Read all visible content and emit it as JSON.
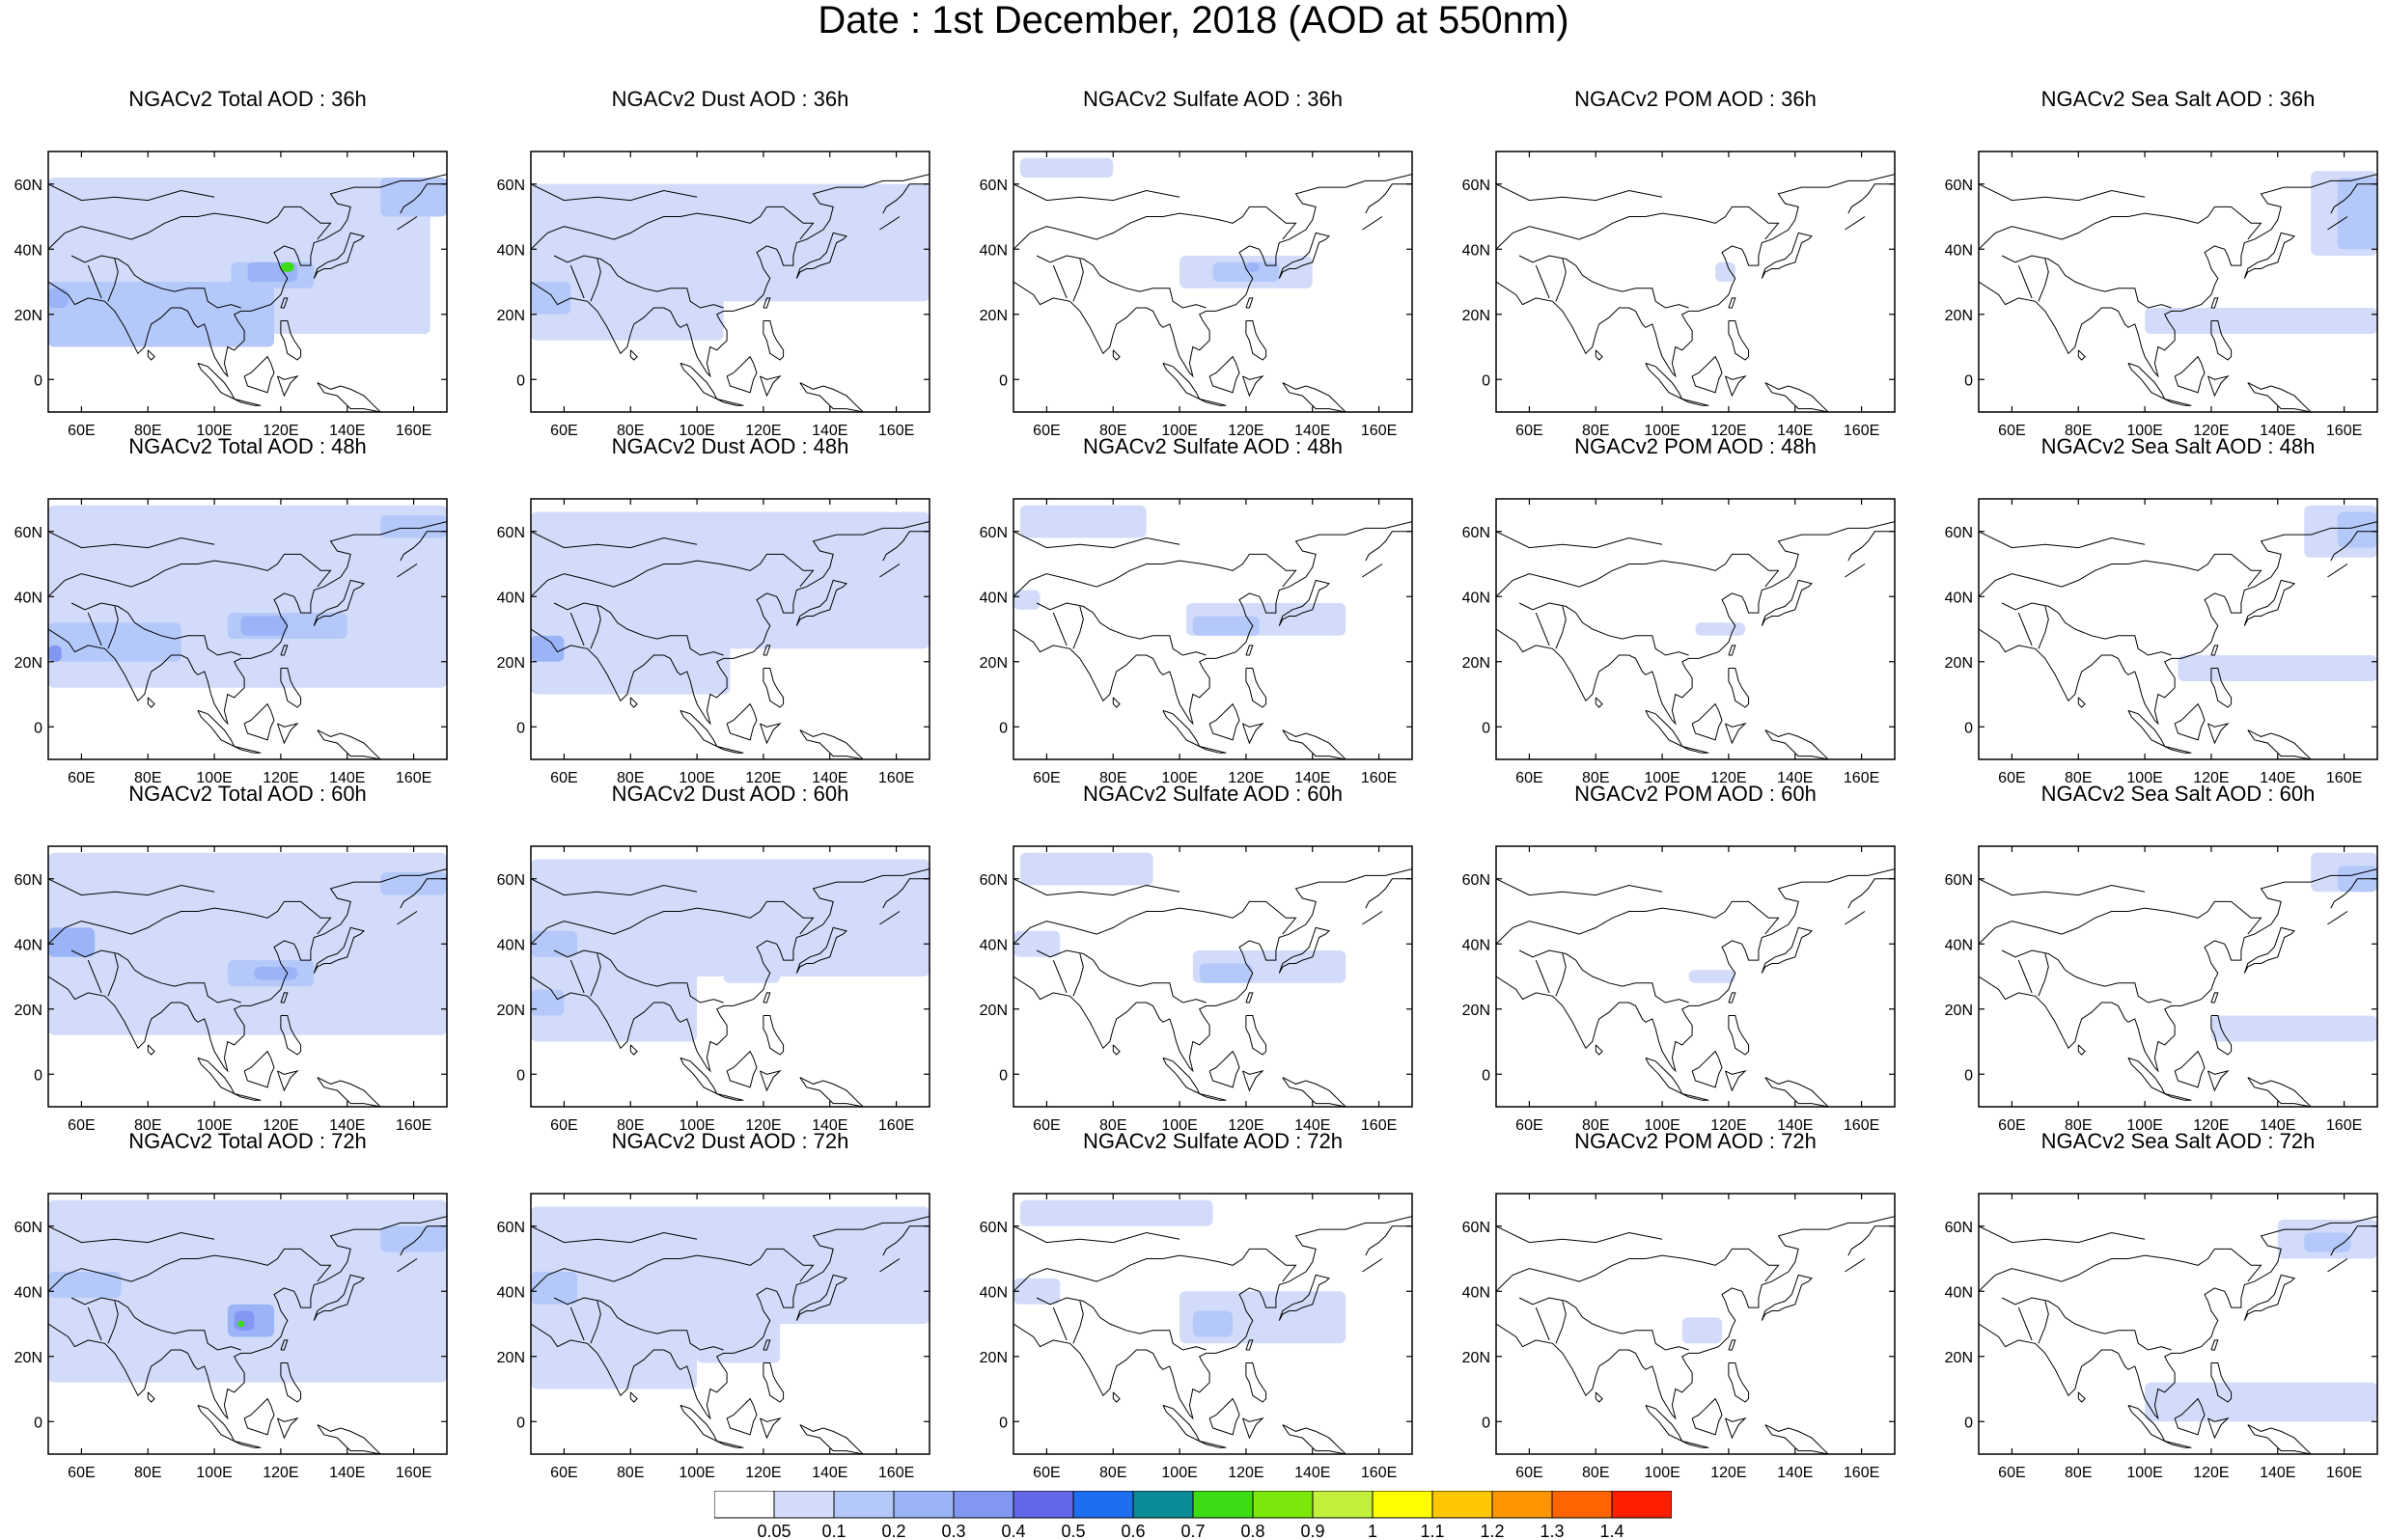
{
  "figure": {
    "title": "Date : 1st December, 2018 (AOD at 550nm)"
  },
  "panel_titles": [
    [
      "NGACv2 Total AOD : 36h",
      "NGACv2 Dust AOD : 36h",
      "NGACv2 Sulfate AOD : 36h",
      "NGACv2 POM AOD : 36h",
      "NGACv2 Sea Salt AOD : 36h"
    ],
    [
      "NGACv2 Total AOD : 48h",
      "NGACv2 Dust AOD : 48h",
      "NGACv2 Sulfate AOD : 48h",
      "NGACv2 POM AOD : 48h",
      "NGACv2 Sea Salt AOD : 48h"
    ],
    [
      "NGACv2 Total AOD : 60h",
      "NGACv2 Dust AOD : 60h",
      "NGACv2 Sulfate AOD : 60h",
      "NGACv2 POM AOD : 60h",
      "NGACv2 Sea Salt AOD : 60h"
    ],
    [
      "NGACv2 Total AOD : 72h",
      "NGACv2 Dust AOD : 72h",
      "NGACv2 Sulfate AOD : 72h",
      "NGACv2 POM AOD : 72h",
      "NGACv2 Sea Salt  AOD : 72h"
    ]
  ],
  "map": {
    "lon_range": [
      50,
      170
    ],
    "lat_range": [
      -10,
      70
    ],
    "x_tick_values": [
      60,
      80,
      100,
      120,
      140,
      160
    ],
    "x_tick_labels": [
      "60E",
      "80E",
      "100E",
      "120E",
      "140E",
      "160E"
    ],
    "y_tick_values": [
      0,
      20,
      40,
      60
    ],
    "y_tick_labels": [
      "0",
      "20N",
      "40N",
      "60N"
    ],
    "coastline_color": "#000000",
    "frame_color": "#000000"
  },
  "colorbar": {
    "labels": [
      "0.05",
      "0.1",
      "0.2",
      "0.3",
      "0.4",
      "0.5",
      "0.6",
      "0.7",
      "0.8",
      "0.9",
      "1",
      "1.1",
      "1.2",
      "1.3",
      "1.4"
    ],
    "colors": [
      "#ffffff",
      "#d2dcfa",
      "#b4c8fa",
      "#9bb4f8",
      "#8297f2",
      "#6466ea",
      "#1e6ef0",
      "#0a8c96",
      "#3cdc14",
      "#7ae80a",
      "#c2f03c",
      "#ffff00",
      "#ffc800",
      "#ff9600",
      "#ff6400",
      "#ff1e00"
    ]
  },
  "chart_data": {
    "type": "heatmap",
    "title": "Date : 1st December, 2018 (AOD at 550nm)",
    "variable": "AOD at 550nm",
    "rows_forecast_hours": [
      "36h",
      "48h",
      "60h",
      "72h"
    ],
    "columns_species": [
      "Total AOD",
      "Dust AOD",
      "Sulfate AOD",
      "POM AOD",
      "Sea Salt AOD"
    ],
    "xlim": [
      50,
      170
    ],
    "ylim": [
      -10,
      70
    ],
    "color_levels": [
      0.05,
      0.1,
      0.2,
      0.3,
      0.4,
      0.5,
      0.6,
      0.7,
      0.8,
      0.9,
      1.0,
      1.1,
      1.2,
      1.3,
      1.4
    ],
    "plumes": {
      "total": [
        [
          {
            "lon": [
              50,
              165
            ],
            "lat": [
              14,
              62
            ],
            "level": 1
          },
          {
            "lon": [
              50,
              118
            ],
            "lat": [
              10,
              30
            ],
            "level": 2
          },
          {
            "lon": [
              105,
              130
            ],
            "lat": [
              28,
              36
            ],
            "level": 2
          },
          {
            "lon": [
              110,
              125
            ],
            "lat": [
              30,
              36
            ],
            "level": 3
          },
          {
            "lon": [
              120,
              124
            ],
            "lat": [
              33,
              36
            ],
            "level": 8
          },
          {
            "lon": [
              150,
              170
            ],
            "lat": [
              50,
              62
            ],
            "level": 2
          },
          {
            "lon": [
              50,
              56
            ],
            "lat": [
              22,
              28
            ],
            "level": 3
          }
        ],
        [
          {
            "lon": [
              50,
              170
            ],
            "lat": [
              12,
              68
            ],
            "level": 1
          },
          {
            "lon": [
              50,
              90
            ],
            "lat": [
              20,
              32
            ],
            "level": 2
          },
          {
            "lon": [
              50,
              54
            ],
            "lat": [
              20,
              25
            ],
            "level": 4
          },
          {
            "lon": [
              104,
              140
            ],
            "lat": [
              27,
              35
            ],
            "level": 2
          },
          {
            "lon": [
              108,
              122
            ],
            "lat": [
              28,
              34
            ],
            "level": 3
          },
          {
            "lon": [
              150,
              170
            ],
            "lat": [
              58,
              65
            ],
            "level": 2
          }
        ],
        [
          {
            "lon": [
              50,
              170
            ],
            "lat": [
              12,
              68
            ],
            "level": 1
          },
          {
            "lon": [
              50,
              64
            ],
            "lat": [
              36,
              45
            ],
            "level": 3
          },
          {
            "lon": [
              104,
              130
            ],
            "lat": [
              27,
              35
            ],
            "level": 2
          },
          {
            "lon": [
              112,
              125
            ],
            "lat": [
              29,
              33
            ],
            "level": 3
          },
          {
            "lon": [
              150,
              170
            ],
            "lat": [
              55,
              62
            ],
            "level": 2
          }
        ],
        [
          {
            "lon": [
              50,
              170
            ],
            "lat": [
              12,
              68
            ],
            "level": 1
          },
          {
            "lon": [
              50,
              72
            ],
            "lat": [
              38,
              46
            ],
            "level": 2
          },
          {
            "lon": [
              104,
              118
            ],
            "lat": [
              26,
              36
            ],
            "level": 3
          },
          {
            "lon": [
              106,
              112
            ],
            "lat": [
              28,
              34
            ],
            "level": 4
          },
          {
            "lon": [
              107,
              109
            ],
            "lat": [
              29,
              31
            ],
            "level": 8
          },
          {
            "lon": [
              150,
              170
            ],
            "lat": [
              52,
              60
            ],
            "level": 2
          }
        ]
      ],
      "dust": [
        [
          {
            "lon": [
              50,
              170
            ],
            "lat": [
              24,
              60
            ],
            "level": 1
          },
          {
            "lon": [
              50,
              108
            ],
            "lat": [
              12,
              40
            ],
            "level": 1
          },
          {
            "lon": [
              50,
              62
            ],
            "lat": [
              20,
              30
            ],
            "level": 2
          },
          {
            "lon": [
              96,
              140
            ],
            "lat": [
              34,
              44
            ],
            "level": 1
          }
        ],
        [
          {
            "lon": [
              50,
              170
            ],
            "lat": [
              24,
              66
            ],
            "level": 1
          },
          {
            "lon": [
              50,
              110
            ],
            "lat": [
              10,
              40
            ],
            "level": 1
          },
          {
            "lon": [
              50,
              60
            ],
            "lat": [
              20,
              28
            ],
            "level": 3
          },
          {
            "lon": [
              100,
              145
            ],
            "lat": [
              30,
              42
            ],
            "level": 1
          }
        ],
        [
          {
            "lon": [
              50,
              170
            ],
            "lat": [
              30,
              66
            ],
            "level": 1
          },
          {
            "lon": [
              50,
              100
            ],
            "lat": [
              10,
              40
            ],
            "level": 1
          },
          {
            "lon": [
              50,
              60
            ],
            "lat": [
              18,
              26
            ],
            "level": 2
          },
          {
            "lon": [
              50,
              64
            ],
            "lat": [
              36,
              44
            ],
            "level": 2
          },
          {
            "lon": [
              108,
              125
            ],
            "lat": [
              28,
              34
            ],
            "level": 1
          }
        ],
        [
          {
            "lon": [
              50,
              170
            ],
            "lat": [
              30,
              66
            ],
            "level": 1
          },
          {
            "lon": [
              50,
              100
            ],
            "lat": [
              10,
              40
            ],
            "level": 1
          },
          {
            "lon": [
              50,
              64
            ],
            "lat": [
              36,
              46
            ],
            "level": 2
          },
          {
            "lon": [
              100,
              125
            ],
            "lat": [
              18,
              34
            ],
            "level": 1
          }
        ]
      ],
      "sulfate": [
        [
          {
            "lon": [
              52,
              80
            ],
            "lat": [
              62,
              68
            ],
            "level": 1
          },
          {
            "lon": [
              100,
              140
            ],
            "lat": [
              28,
              38
            ],
            "level": 1
          },
          {
            "lon": [
              110,
              130
            ],
            "lat": [
              30,
              36
            ],
            "level": 2
          },
          {
            "lon": [
              120,
              124
            ],
            "lat": [
              33,
              36
            ],
            "level": 3
          }
        ],
        [
          {
            "lon": [
              52,
              90
            ],
            "lat": [
              58,
              68
            ],
            "level": 1
          },
          {
            "lon": [
              50,
              58
            ],
            "lat": [
              36,
              42
            ],
            "level": 1
          },
          {
            "lon": [
              102,
              150
            ],
            "lat": [
              28,
              38
            ],
            "level": 1
          },
          {
            "lon": [
              104,
              124
            ],
            "lat": [
              28,
              34
            ],
            "level": 2
          }
        ],
        [
          {
            "lon": [
              52,
              92
            ],
            "lat": [
              58,
              68
            ],
            "level": 1
          },
          {
            "lon": [
              50,
              64
            ],
            "lat": [
              36,
              44
            ],
            "level": 1
          },
          {
            "lon": [
              104,
              150
            ],
            "lat": [
              28,
              38
            ],
            "level": 1
          },
          {
            "lon": [
              106,
              122
            ],
            "lat": [
              28,
              34
            ],
            "level": 2
          }
        ],
        [
          {
            "lon": [
              52,
              110
            ],
            "lat": [
              60,
              68
            ],
            "level": 1
          },
          {
            "lon": [
              50,
              64
            ],
            "lat": [
              36,
              44
            ],
            "level": 1
          },
          {
            "lon": [
              100,
              150
            ],
            "lat": [
              24,
              40
            ],
            "level": 1
          },
          {
            "lon": [
              104,
              116
            ],
            "lat": [
              26,
              34
            ],
            "level": 2
          }
        ]
      ],
      "pom": [
        [
          {
            "lon": [
              116,
              122
            ],
            "lat": [
              30,
              36
            ],
            "level": 1
          }
        ],
        [
          {
            "lon": [
              110,
              125
            ],
            "lat": [
              28,
              32
            ],
            "level": 1
          }
        ],
        [
          {
            "lon": [
              108,
              122
            ],
            "lat": [
              28,
              32
            ],
            "level": 1
          }
        ],
        [
          {
            "lon": [
              106,
              118
            ],
            "lat": [
              24,
              32
            ],
            "level": 1
          }
        ]
      ],
      "seasalt": [
        [
          {
            "lon": [
              150,
              170
            ],
            "lat": [
              38,
              64
            ],
            "level": 1
          },
          {
            "lon": [
              158,
              170
            ],
            "lat": [
              40,
              62
            ],
            "level": 2
          },
          {
            "lon": [
              100,
              170
            ],
            "lat": [
              14,
              22
            ],
            "level": 1
          }
        ],
        [
          {
            "lon": [
              148,
              170
            ],
            "lat": [
              52,
              68
            ],
            "level": 1
          },
          {
            "lon": [
              158,
              170
            ],
            "lat": [
              55,
              66
            ],
            "level": 2
          },
          {
            "lon": [
              110,
              170
            ],
            "lat": [
              14,
              22
            ],
            "level": 1
          }
        ],
        [
          {
            "lon": [
              150,
              170
            ],
            "lat": [
              56,
              68
            ],
            "level": 1
          },
          {
            "lon": [
              158,
              170
            ],
            "lat": [
              56,
              64
            ],
            "level": 2
          },
          {
            "lon": [
              120,
              170
            ],
            "lat": [
              10,
              18
            ],
            "level": 1
          }
        ],
        [
          {
            "lon": [
              140,
              170
            ],
            "lat": [
              50,
              62
            ],
            "level": 1
          },
          {
            "lon": [
              148,
              162
            ],
            "lat": [
              52,
              58
            ],
            "level": 2
          },
          {
            "lon": [
              100,
              170
            ],
            "lat": [
              0,
              12
            ],
            "level": 1
          }
        ]
      ]
    }
  }
}
